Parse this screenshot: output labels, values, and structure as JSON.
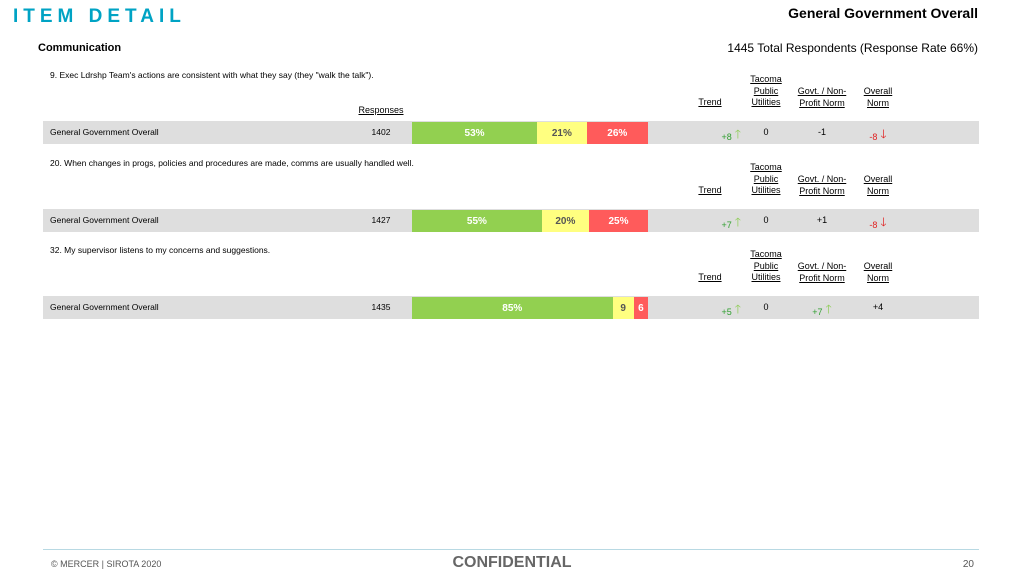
{
  "header": {
    "section_title": "ITEM DETAIL",
    "report_title": "General Government Overall",
    "category": "Communication",
    "respondents": "1445 Total Respondents (Response Rate  66%)"
  },
  "columns": {
    "responses": "Responses",
    "trend": "Trend",
    "tacoma": "Tacoma Public Utilities",
    "govt": "Govt. / Non-Profit Norm",
    "overall": "Overall Norm"
  },
  "colors": {
    "favorable": "#92d050",
    "neutral": "#ffff80",
    "unfavorable": "#ff5b5b",
    "positive": "#2e9e2e",
    "negative": "#e02020",
    "accent": "#00a3c4"
  },
  "items": [
    {
      "question": "9. Exec Ldrshp Team's actions are consistent with what they say (they \"walk the talk\").",
      "group": "General Government Overall",
      "responses": "1402",
      "favorable": 53,
      "neutral": 21,
      "unfavorable": 26,
      "favorable_label": "53%",
      "neutral_label": "21%",
      "unfavorable_label": "26%",
      "trend": "+8",
      "trend_dir": "up",
      "tacoma": "0",
      "govt": "-1",
      "govt_dir": "none",
      "overall": "-8",
      "overall_dir": "down"
    },
    {
      "question": "20. When changes in progs, policies and procedures are made, comms are usually handled well.",
      "group": "General Government Overall",
      "responses": "1427",
      "favorable": 55,
      "neutral": 20,
      "unfavorable": 25,
      "favorable_label": "55%",
      "neutral_label": "20%",
      "unfavorable_label": "25%",
      "trend": "+7",
      "trend_dir": "up",
      "tacoma": "0",
      "govt": "+1",
      "govt_dir": "none",
      "overall": "-8",
      "overall_dir": "down"
    },
    {
      "question": "32. My supervisor listens to my concerns and suggestions.",
      "group": "General Government Overall",
      "responses": "1435",
      "favorable": 85,
      "neutral": 9,
      "unfavorable": 6,
      "favorable_label": "85%",
      "neutral_label": "9",
      "unfavorable_label": "6",
      "trend": "+5",
      "trend_dir": "up",
      "tacoma": "0",
      "govt": "+7",
      "govt_dir": "up",
      "overall": "+4",
      "overall_dir": "none"
    }
  ],
  "footer": {
    "copyright": "© MERCER | SIROTA 2020",
    "confidential": "CONFIDENTIAL",
    "page": "20"
  }
}
